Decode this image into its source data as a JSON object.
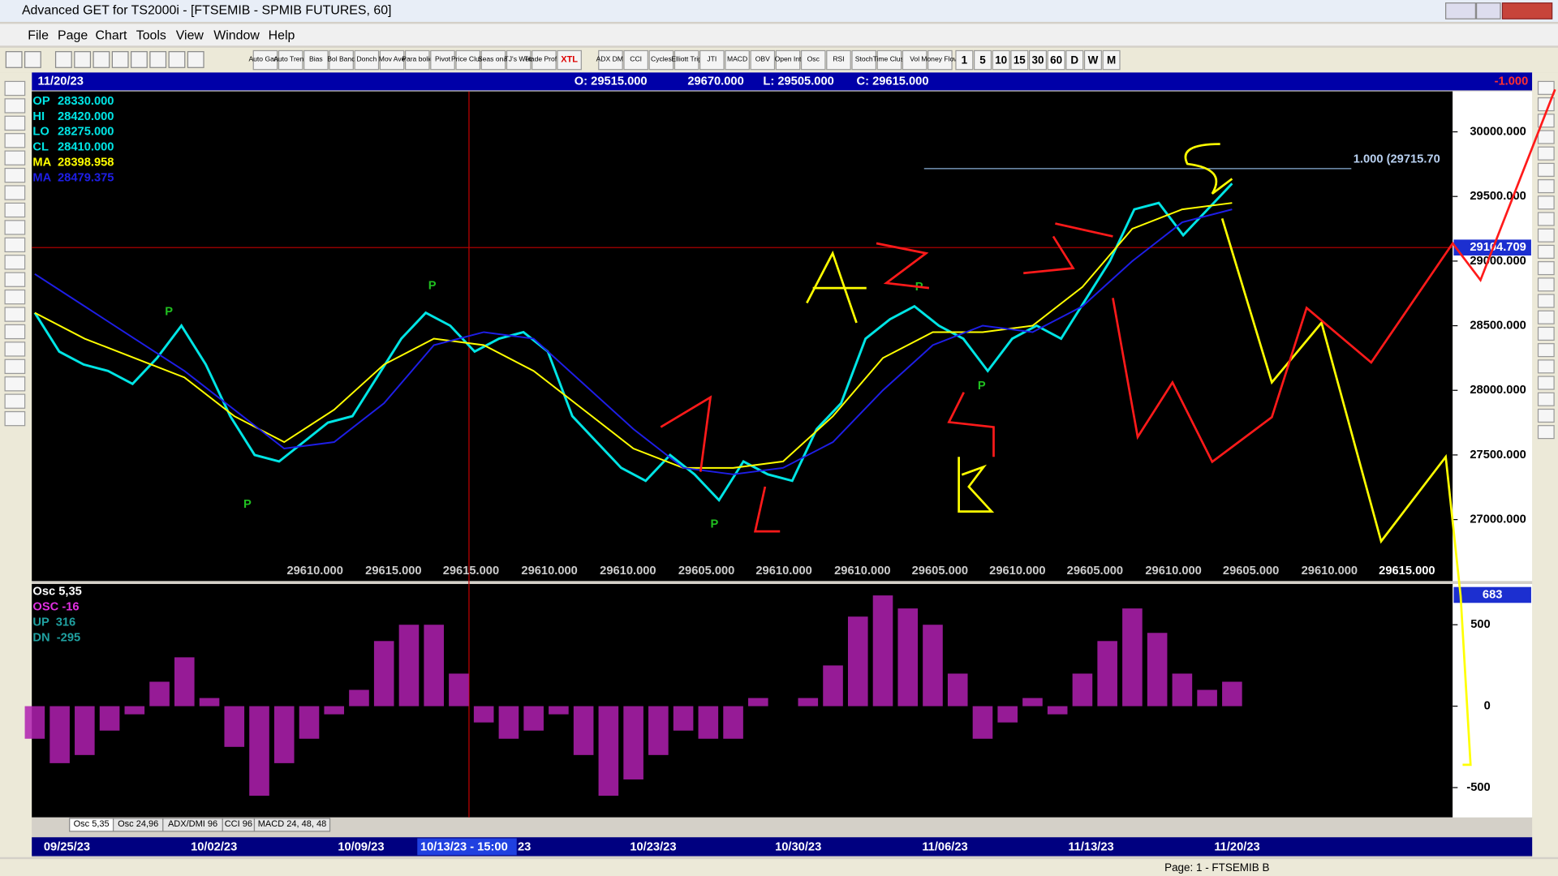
{
  "window": {
    "title": "Advanced GET for TS2000i - [FTSEMIB - SPMIB FUTURES, 60]",
    "menus": [
      "File",
      "Page",
      "Chart",
      "Tools",
      "View",
      "Window",
      "Help"
    ],
    "toolbar_buttons": [
      "Auto Gann",
      "Auto Trend",
      "Bias",
      "Bol Band",
      "Donch",
      "Mov Ave",
      "Para bolic",
      "Pivot",
      "Price Clust",
      "Seas onal",
      "TJ's Web",
      "Trade Profile",
      "XTL",
      "ADX DMI",
      "CCI",
      "Cycles",
      "Elliott Trig",
      "JTI",
      "MACD",
      "OBV",
      "Open Int",
      "Osc",
      "RSI",
      "Stoch",
      "Time Clust",
      "Vol",
      "Money Flow"
    ],
    "timeframes": [
      "1",
      "5",
      "10",
      "15",
      "30",
      "60",
      "D",
      "W",
      "M"
    ],
    "status": "Page: 1 - FTSEMIB B"
  },
  "header": {
    "date": "11/20/23",
    "open": "O: 29515.000",
    "high": "29670.000",
    "low": "L: 29505.000",
    "close": "C: 29615.000",
    "change": "-1.000"
  },
  "info": [
    {
      "label": "OP",
      "value": "28330.000"
    },
    {
      "label": "HI",
      "value": "28420.000"
    },
    {
      "label": "LO",
      "value": "28275.000"
    },
    {
      "label": "CL",
      "value": "28410.000"
    },
    {
      "label": "MA",
      "value": "28398.958"
    },
    {
      "label": "MA",
      "value": "28479.375"
    }
  ],
  "price_chart": {
    "type": "line",
    "ylim": [
      26540,
      30290
    ],
    "yticks": [
      {
        "value": 27000,
        "label": "27000.000"
      },
      {
        "value": 27500,
        "label": "27500.000"
      },
      {
        "value": 28000,
        "label": "28000.000"
      },
      {
        "value": 28500,
        "label": "28500.000"
      },
      {
        "value": 29000,
        "label": "29000.000"
      },
      {
        "value": 29500,
        "label": "29500.000"
      },
      {
        "value": 30000,
        "label": "30000.000"
      }
    ],
    "series": [
      {
        "color": "#00e5e5",
        "values": [
          28600,
          28300,
          28200,
          28150,
          28050,
          28250,
          28500,
          28200,
          27800,
          27500,
          27450,
          27600,
          27750,
          27800,
          28100,
          28400,
          28600,
          28500,
          28300,
          28400,
          28450,
          28300,
          27800,
          27600,
          27400,
          27300,
          27500,
          27350,
          27150,
          27450,
          27350,
          27300,
          27700,
          27900,
          28400,
          28550,
          28650,
          28500,
          28400,
          28150,
          28400,
          28500,
          28400,
          28700,
          29000,
          29400,
          29450,
          29200,
          29400,
          29600
        ]
      },
      {
        "color": "#ffff00",
        "values": [
          28600,
          28400,
          28250,
          28100,
          27800,
          27600,
          27850,
          28200,
          28400,
          28350,
          28150,
          27850,
          27550,
          27400,
          27400,
          27450,
          27800,
          28250,
          28450,
          28450,
          28500,
          28800,
          29250,
          29400,
          29450
        ]
      },
      {
        "color": "#1e1ee6",
        "values": [
          28900,
          28650,
          28400,
          28150,
          27850,
          27550,
          27600,
          27900,
          28350,
          28450,
          28400,
          28050,
          27700,
          27400,
          27350,
          27400,
          27600,
          28000,
          28350,
          28500,
          28450,
          28650,
          29000,
          29300,
          29400
        ]
      }
    ],
    "crosshair": 29104.709,
    "fib_level": 29715.7,
    "fib_label": "1.000 (29715.70",
    "bar_labels": [
      "29610.000",
      "29615.000",
      "29615.000",
      "29610.000",
      "29610.000",
      "29605.000",
      "29610.000",
      "29610.000",
      "29605.000",
      "29610.000",
      "29605.000",
      "29610.000",
      "29605.000",
      "29610.000",
      "29615.000"
    ],
    "pivot_labels": [
      "P",
      "P",
      "P",
      "P",
      "P",
      "P"
    ]
  },
  "osc_chart": {
    "type": "bar",
    "color": "#b020b0",
    "ylim": [
      -677,
      738
    ],
    "yticks": [
      -500,
      0,
      500
    ],
    "legend": [
      "Osc 5,35",
      "OSC -16",
      "UP  316",
      "DN  -295"
    ],
    "last": 683,
    "values": [
      -200,
      -350,
      -300,
      -150,
      -50,
      150,
      300,
      50,
      -250,
      -550,
      -350,
      -200,
      -50,
      100,
      400,
      500,
      500,
      200,
      -100,
      -200,
      -150,
      -50,
      -300,
      -550,
      -450,
      -300,
      -150,
      -200,
      -200,
      50,
      0,
      50,
      250,
      550,
      680,
      600,
      500,
      200,
      -200,
      -100,
      50,
      -50,
      200,
      400,
      600,
      450,
      200,
      100,
      150
    ]
  },
  "tabs": [
    "Osc 5,35",
    "Osc 24,96",
    "ADX/DMI 96",
    "CCI 96",
    "MACD 24, 48, 48"
  ],
  "dates": [
    "09/25/23",
    "10/02/23",
    "10/09/23",
    "10/13/23 - 15:00",
    "23",
    "10/23/23",
    "10/30/23",
    "11/06/23",
    "11/13/23",
    "11/20/23"
  ]
}
